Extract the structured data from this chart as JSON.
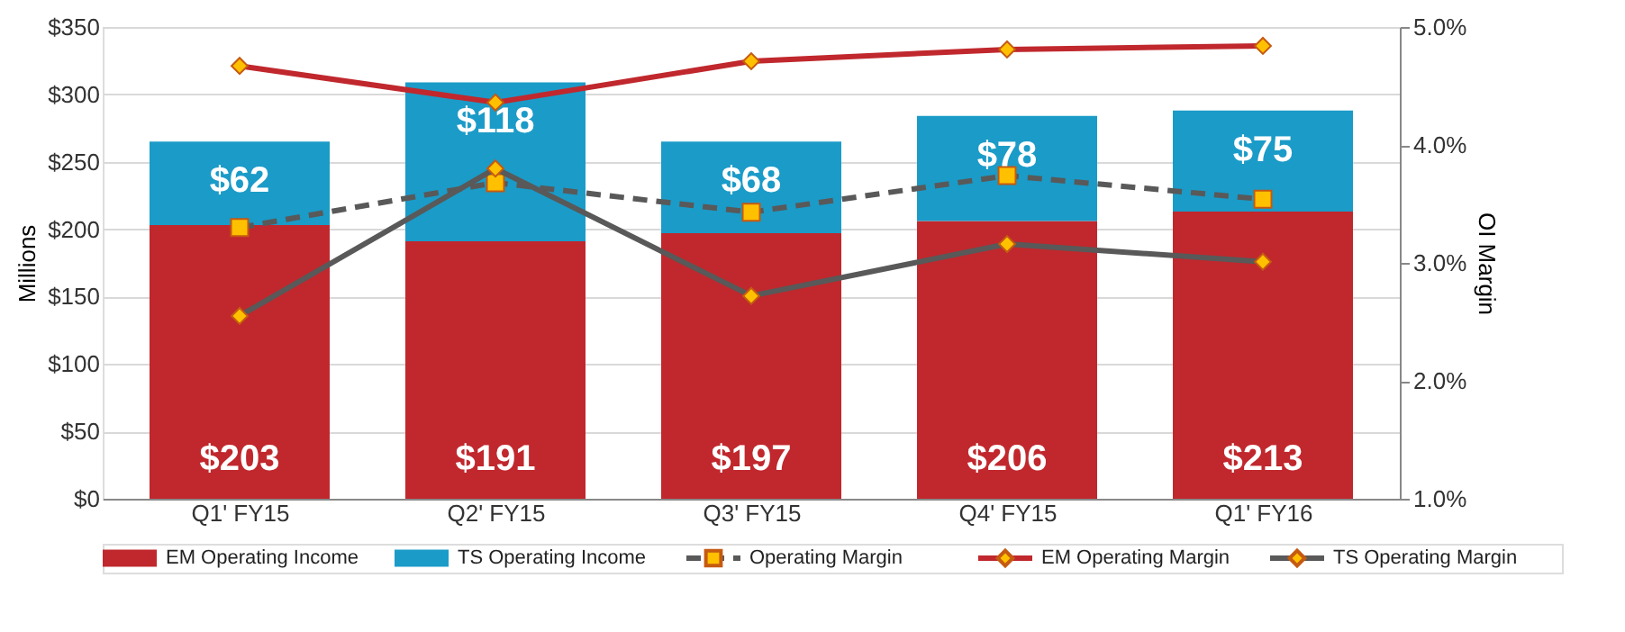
{
  "chart_data": {
    "type": "bar",
    "stacked": true,
    "categories": [
      "Q1' FY15",
      "Q2' FY15",
      "Q3' FY15",
      "Q4' FY15",
      "Q1' FY16"
    ],
    "ylabel": "Millions",
    "y2label": "OI Margin",
    "ylim": [
      0,
      350
    ],
    "yticks": [
      {
        "value": 0,
        "label": "$0"
      },
      {
        "value": 50,
        "label": "$50"
      },
      {
        "value": 100,
        "label": "$100"
      },
      {
        "value": 150,
        "label": "$150"
      },
      {
        "value": 200,
        "label": "$200"
      },
      {
        "value": 250,
        "label": "$250"
      },
      {
        "value": 300,
        "label": "$300"
      },
      {
        "value": 350,
        "label": "$350"
      }
    ],
    "y2lim": [
      1.0,
      5.0
    ],
    "y2ticks": [
      {
        "value": 1.0,
        "label": "1.0%"
      },
      {
        "value": 2.0,
        "label": "2.0%"
      },
      {
        "value": 3.0,
        "label": "3.0%"
      },
      {
        "value": 4.0,
        "label": "4.0%"
      },
      {
        "value": 5.0,
        "label": "5.0%"
      }
    ],
    "grid": "y",
    "legend": "bottom",
    "series": [
      {
        "name": "EM Operating Income",
        "color": "#c0282d",
        "values": [
          203,
          191,
          197,
          206,
          213
        ],
        "value_labels": [
          "$203",
          "$191",
          "$197",
          "$206",
          "$213"
        ]
      },
      {
        "name": "TS Operating Income",
        "color": "#1b9bc8",
        "values": [
          62,
          118,
          68,
          78,
          75
        ],
        "value_labels": [
          "$62",
          "$118",
          "$68",
          "$78",
          "$75"
        ]
      },
      {
        "name": "Operating Margin",
        "type": "line",
        "axis": "y2",
        "color": "#595959",
        "line_style": "dashed",
        "marker": "square",
        "values": [
          3.3,
          3.68,
          3.43,
          3.74,
          3.54
        ]
      },
      {
        "name": "EM Operating Margin",
        "type": "line",
        "axis": "y2",
        "color": "#c0282d",
        "line_style": "solid",
        "marker": "diamond",
        "values": [
          4.67,
          4.36,
          4.71,
          4.81,
          4.84
        ]
      },
      {
        "name": "TS Operating Margin",
        "type": "line",
        "axis": "y2",
        "color": "#595959",
        "line_style": "solid",
        "marker": "diamond",
        "values": [
          2.55,
          3.8,
          2.72,
          3.16,
          3.01
        ]
      }
    ]
  }
}
